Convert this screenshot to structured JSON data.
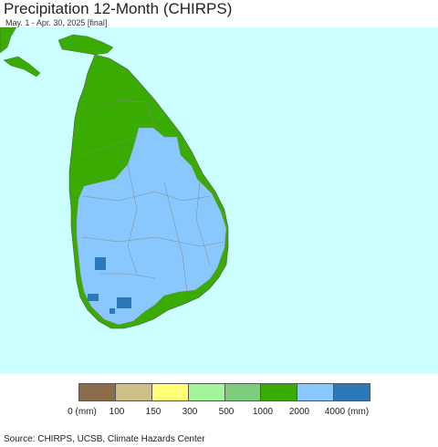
{
  "title": "Precipitation 12-Month (CHIRPS)",
  "subtitle": "May. 1 - Apr. 30, 2025 [final]",
  "map": {
    "colors": {
      "ocean": "#ccffff",
      "land_mainland": "#3aab00",
      "wet_zone": "#88c8ff",
      "very_wet": "#2b79b8",
      "border": "#888888"
    }
  },
  "legend": {
    "colors": [
      "#8b6c4b",
      "#cdbf88",
      "#ffff77",
      "#a4f49a",
      "#7ecd7c",
      "#3aab00",
      "#88c8ff",
      "#2b79b8"
    ],
    "tick_labels": [
      "0 (mm)",
      "100",
      "150",
      "300",
      "500",
      "1000",
      "2000",
      "4000 (mm)"
    ]
  },
  "source": "Source: CHIRPS, UCSB, Climate Hazards Center"
}
